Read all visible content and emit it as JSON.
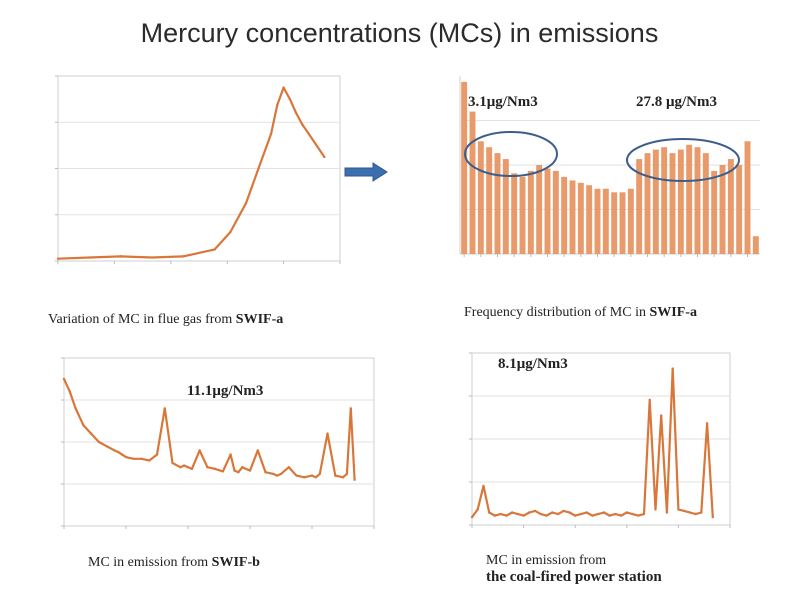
{
  "slide": {
    "title": "Mercury concentrations (MCs) in emissions"
  },
  "callouts": {
    "freq_left": "3.1μg/Nm3",
    "freq_right": "27.8 μg/Nm3",
    "swib": "11.1μg/Nm3",
    "coal": "8.1μg/Nm3"
  },
  "captions": {
    "chart1_main": "Variation of MC in flue gas from ",
    "chart1_bold": "SWIF-a",
    "chart2_main": "Frequency distribution of MC in ",
    "chart2_bold": "SWIF-a",
    "chart3_main": "MC in emission from ",
    "chart3_bold": "SWIF-b",
    "chart4_main": "MC in emission from",
    "chart4_bold": "the coal-fired power station"
  },
  "colors": {
    "line": "#d9773a",
    "bar": "#e89a6b",
    "ellipse": "#3b5e8c",
    "arrow": "#3b6fb0",
    "grid": "#e2e2e2"
  },
  "chart_data": [
    {
      "type": "line",
      "x": [
        0,
        100,
        200,
        300,
        400,
        500,
        550,
        600,
        640,
        680,
        700,
        720,
        740,
        760,
        780,
        800,
        850
      ],
      "values": [
        2,
        3,
        4,
        3,
        4,
        10,
        25,
        50,
        80,
        110,
        135,
        150,
        140,
        128,
        118,
        110,
        90
      ],
      "xlim": [
        0,
        900
      ],
      "ylim": [
        0,
        160
      ],
      "grid": true
    },
    {
      "type": "bar",
      "values": [
        145,
        120,
        95,
        90,
        85,
        80,
        68,
        65,
        70,
        75,
        72,
        70,
        65,
        62,
        60,
        58,
        55,
        55,
        52,
        52,
        55,
        80,
        85,
        88,
        90,
        85,
        88,
        92,
        90,
        85,
        70,
        75,
        80,
        75,
        95,
        15
      ],
      "ylim": [
        0,
        150
      ],
      "grid": true
    },
    {
      "type": "line",
      "x": [
        0,
        3,
        6,
        10,
        14,
        18,
        22,
        26,
        28,
        30,
        32,
        36,
        40,
        44,
        48,
        52,
        56,
        60,
        62,
        64,
        66,
        70,
        74,
        78,
        82,
        86,
        88,
        90,
        92,
        96,
        100,
        104,
        108,
        110,
        112,
        116,
        120,
        124,
        128,
        130,
        132,
        136,
        140,
        144,
        146,
        148,
        150
      ],
      "values": [
        175,
        160,
        140,
        120,
        110,
        100,
        95,
        90,
        88,
        85,
        82,
        80,
        80,
        78,
        85,
        140,
        75,
        70,
        72,
        70,
        68,
        90,
        70,
        68,
        65,
        85,
        66,
        64,
        70,
        66,
        90,
        64,
        62,
        60,
        62,
        70,
        60,
        58,
        60,
        58,
        62,
        110,
        60,
        58,
        62,
        140,
        55
      ],
      "xlim": [
        0,
        160
      ],
      "ylim": [
        0,
        200
      ],
      "grid": true
    },
    {
      "type": "line",
      "x": [
        0,
        2,
        4,
        6,
        8,
        10,
        12,
        14,
        16,
        18,
        20,
        22,
        24,
        26,
        28,
        30,
        32,
        34,
        36,
        38,
        40,
        42,
        44,
        46,
        48,
        50,
        52,
        54,
        56,
        58,
        60,
        62,
        64,
        66,
        68,
        70,
        72,
        74,
        76,
        78,
        80,
        82,
        84
      ],
      "values": [
        5,
        10,
        25,
        8,
        6,
        7,
        6,
        8,
        7,
        6,
        8,
        9,
        7,
        6,
        8,
        7,
        9,
        8,
        6,
        7,
        8,
        6,
        7,
        8,
        6,
        7,
        6,
        8,
        7,
        6,
        7,
        80,
        10,
        70,
        8,
        100,
        10,
        9,
        8,
        7,
        8,
        65,
        5
      ],
      "xlim": [
        0,
        90
      ],
      "ylim": [
        0,
        110
      ],
      "grid": true
    }
  ]
}
